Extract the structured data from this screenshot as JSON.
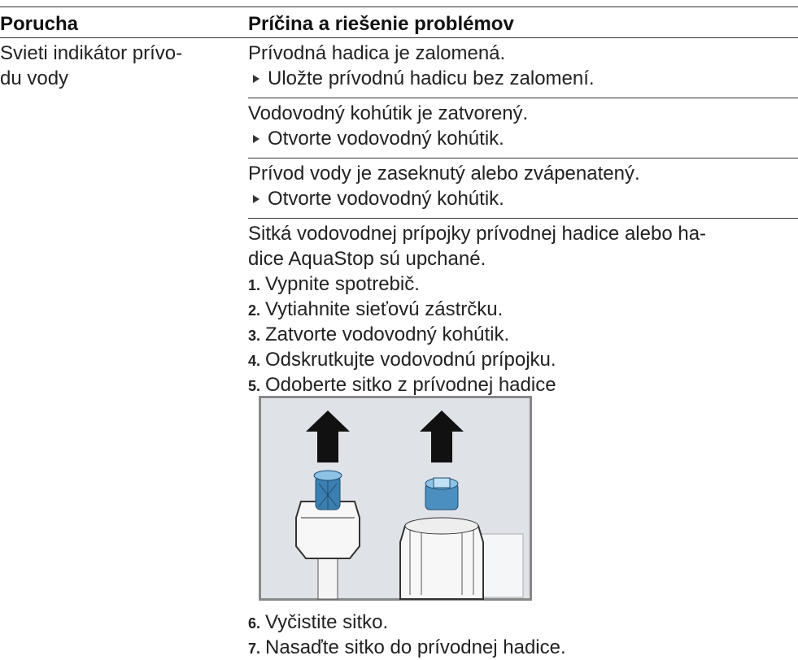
{
  "header": {
    "col1": "Porucha",
    "col2": "Príčina a riešenie problémov"
  },
  "row": {
    "fault": [
      "Svieti indikátor prívo-",
      "du vody"
    ],
    "causes": [
      {
        "cause": [
          "Prívodná hadica je zalomená."
        ],
        "action": "Uložte prívodnú hadicu bez zalomení."
      },
      {
        "cause": [
          "Vodovodný kohútik je zatvorený."
        ],
        "action": "Otvorte vodovodný kohútik."
      },
      {
        "cause": [
          "Prívod vody je zaseknutý alebo zvápenatený."
        ],
        "action": "Otvorte vodovodný kohútik."
      },
      {
        "cause": [
          "Sitká vodovodnej prípojky prívodnej hadice alebo ha-",
          "dice AquaStop sú upchané."
        ],
        "steps": [
          {
            "n": "1.",
            "text": "Vypnite spotrebič."
          },
          {
            "n": "2.",
            "text": "Vytiahnite sieťovú zástrčku."
          },
          {
            "n": "3.",
            "text": "Zatvorte vodovodný kohútik."
          },
          {
            "n": "4.",
            "text": "Odskrutkujte vodovodnú prípojku."
          },
          {
            "n": "5.",
            "text": "Odoberte sitko z prívodnej hadice"
          },
          {
            "n": "6.",
            "text": "Vyčistite sitko."
          },
          {
            "n": "7.",
            "text": "Nasaďte sitko do prívodnej hadice."
          }
        ]
      }
    ]
  }
}
